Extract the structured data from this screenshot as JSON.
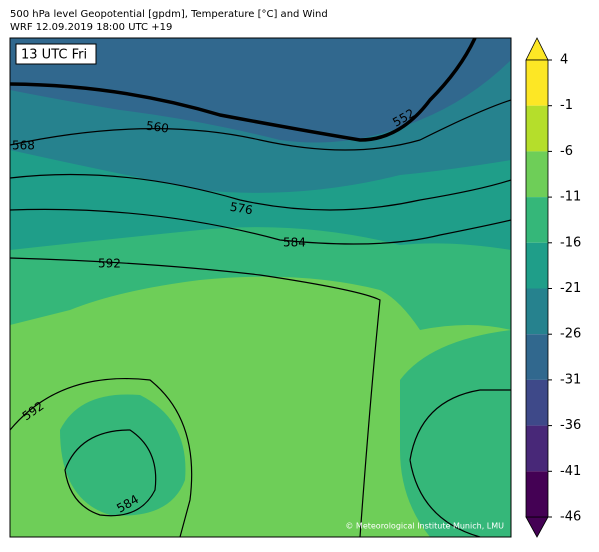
{
  "header": {
    "title": "500 hPa level Geopotential [gpdm], Temperature [°C] and Wind",
    "subtitle": "WRF 12.09.2019 18:00 UTC +19"
  },
  "map": {
    "time_label": "13 UTC Fri",
    "contour_labels": [
      "560",
      "568",
      "576",
      "584",
      "592",
      "552",
      "592",
      "584"
    ],
    "credit": "© Meteorological Institute Munich, LMU"
  },
  "colorbar": {
    "lim": [
      -46,
      4
    ],
    "ticks": [
      4,
      -1,
      -6,
      -11,
      -16,
      -21,
      -26,
      -31,
      -36,
      -41,
      -46
    ],
    "colors": [
      "#fde725",
      "#b5de2b",
      "#6ece58",
      "#35b779",
      "#1f9e89",
      "#26828e",
      "#31688e",
      "#3e4989",
      "#482878",
      "#440154"
    ]
  }
}
